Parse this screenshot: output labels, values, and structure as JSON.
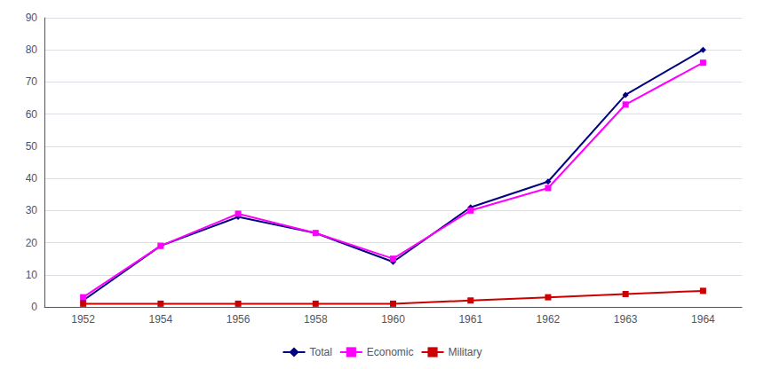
{
  "chart_data": {
    "type": "line",
    "categories": [
      "1952",
      "1954",
      "1956",
      "1958",
      "1960",
      "1961",
      "1962",
      "1963",
      "1964"
    ],
    "series": [
      {
        "name": "Total",
        "color": "#000080",
        "marker": "diamond",
        "values": [
          2,
          19,
          28,
          23,
          14,
          31,
          39,
          66,
          80
        ]
      },
      {
        "name": "Economic",
        "color": "#FF00FF",
        "marker": "square",
        "values": [
          3,
          19,
          29,
          23,
          15,
          30,
          37,
          63,
          76
        ]
      },
      {
        "name": "Military",
        "color": "#CC0000",
        "marker": "square",
        "values": [
          1,
          1,
          1,
          1,
          1,
          2,
          3,
          4,
          5
        ]
      }
    ],
    "ylim": [
      0,
      90
    ],
    "yticks": [
      0,
      10,
      20,
      30,
      40,
      50,
      60,
      70,
      80,
      90
    ],
    "grid": true,
    "legend": "bottom"
  }
}
